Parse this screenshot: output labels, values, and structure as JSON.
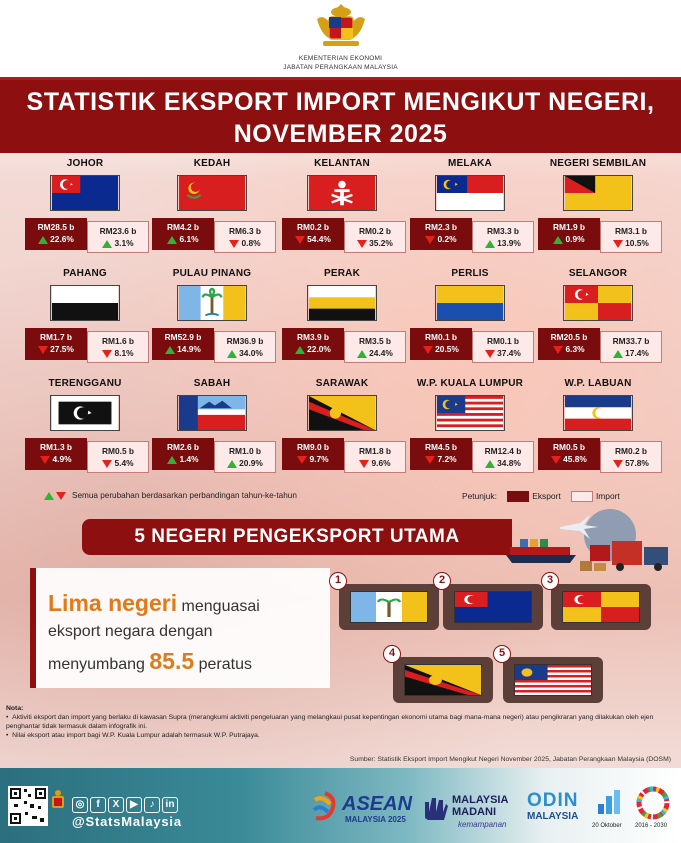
{
  "header": {
    "ministry_line1": "KEMENTERIAN EKONOMI",
    "ministry_line2": "JABATAN PERANGKAAN MALAYSIA",
    "title_line1": "STATISTIK EKSPORT IMPORT MENGIKUT NEGERI,",
    "title_line2": "NOVEMBER 2025"
  },
  "states": [
    {
      "name": "JOHOR",
      "export": "RM28.5 b",
      "export_change": "22.6%",
      "export_dir": "up",
      "import": "RM23.6 b",
      "import_change": "3.1%",
      "import_dir": "up"
    },
    {
      "name": "KEDAH",
      "export": "RM4.2 b",
      "export_change": "6.1%",
      "export_dir": "up",
      "import": "RM6.3 b",
      "import_change": "0.8%",
      "import_dir": "down"
    },
    {
      "name": "KELANTAN",
      "export": "RM0.2 b",
      "export_change": "54.4%",
      "export_dir": "down",
      "import": "RM0.2 b",
      "import_change": "35.2%",
      "import_dir": "down"
    },
    {
      "name": "MELAKA",
      "export": "RM2.3 b",
      "export_change": "0.2%",
      "export_dir": "down",
      "import": "RM3.3 b",
      "import_change": "13.9%",
      "import_dir": "up"
    },
    {
      "name": "NEGERI SEMBILAN",
      "export": "RM1.9 b",
      "export_change": "0.9%",
      "export_dir": "up",
      "import": "RM3.1 b",
      "import_change": "10.5%",
      "import_dir": "down"
    },
    {
      "name": "PAHANG",
      "export": "RM1.7 b",
      "export_change": "27.5%",
      "export_dir": "down",
      "import": "RM1.6 b",
      "import_change": "8.1%",
      "import_dir": "down"
    },
    {
      "name": "PULAU PINANG",
      "export": "RM52.9 b",
      "export_change": "14.9%",
      "export_dir": "up",
      "import": "RM36.9 b",
      "import_change": "34.0%",
      "import_dir": "up"
    },
    {
      "name": "PERAK",
      "export": "RM3.9 b",
      "export_change": "22.0%",
      "export_dir": "up",
      "import": "RM3.5 b",
      "import_change": "24.4%",
      "import_dir": "up"
    },
    {
      "name": "PERLIS",
      "export": "RM0.1 b",
      "export_change": "20.5%",
      "export_dir": "down",
      "import": "RM0.1 b",
      "import_change": "37.4%",
      "import_dir": "down"
    },
    {
      "name": "SELANGOR",
      "export": "RM20.5 b",
      "export_change": "6.3%",
      "export_dir": "down",
      "import": "RM33.7 b",
      "import_change": "17.4%",
      "import_dir": "up"
    },
    {
      "name": "TERENGGANU",
      "export": "RM1.3 b",
      "export_change": "4.9%",
      "export_dir": "down",
      "import": "RM0.5 b",
      "import_change": "5.4%",
      "import_dir": "down"
    },
    {
      "name": "SABAH",
      "export": "RM2.6 b",
      "export_change": "1.4%",
      "export_dir": "up",
      "import": "RM1.0 b",
      "import_change": "20.9%",
      "import_dir": "up"
    },
    {
      "name": "SARAWAK",
      "export": "RM9.0 b",
      "export_change": "9.7%",
      "export_dir": "down",
      "import": "RM1.8 b",
      "import_change": "9.6%",
      "import_dir": "down"
    },
    {
      "name": "W.P. KUALA LUMPUR",
      "export": "RM4.5 b",
      "export_change": "7.2%",
      "export_dir": "down",
      "import": "RM12.4 b",
      "import_change": "34.8%",
      "import_dir": "up"
    },
    {
      "name": "W.P. LABUAN",
      "export": "RM0.5 b",
      "export_change": "45.8%",
      "export_dir": "down",
      "import": "RM0.2 b",
      "import_change": "57.8%",
      "import_dir": "down"
    }
  ],
  "legend": {
    "yoy_note": "Semua perubahan berdasarkan perbandingan tahun-ke-tahun",
    "key_label": "Petunjuk:",
    "export_label": "Eksport",
    "import_label": "Import"
  },
  "top5": {
    "title": "5 NEGERI PENGEKSPORT UTAMA",
    "claim_highlight": "Lima negeri",
    "claim_rest1": " menguasai",
    "claim_line2": "eksport negara dengan",
    "claim_line3_pre": "menyumbang ",
    "claim_value": "85.5",
    "claim_line3_post": " peratus",
    "ranks": [
      "1",
      "2",
      "3",
      "4",
      "5"
    ]
  },
  "notes": {
    "heading": "Nota:",
    "item1": "Aktiviti eksport dan import yang berlaku di kawasan Supra (merangkumi aktiviti pengeluaran yang melangkaui pusat kepentingan ekonomi utama bagi mana-mana negeri) atau pengikraran yang dilakukan oleh ejen penghantar tidak termasuk dalam infografik ini.",
    "item2": "Nilai eksport atau import bagi W.P. Kuala Lumpur adalah termasuk W.P. Putrajaya.",
    "source": "Sumber: Statistik Eksport Import Mengikut Negeri November 2025, Jabatan Perangkaan Malaysia (DOSM)"
  },
  "footer": {
    "handle": "@StatsMalaysia",
    "asean_big": "ASEAN",
    "asean_small": "MALAYSIA 2025",
    "madani_1": "MALAYSIA",
    "madani_2": "MADANI",
    "madani_3": "kemampanan",
    "odin_big": "ODIN",
    "odin_small": "MALAYSIA",
    "date_label": "20 Oktober",
    "years_label": "2016 - 2030"
  }
}
